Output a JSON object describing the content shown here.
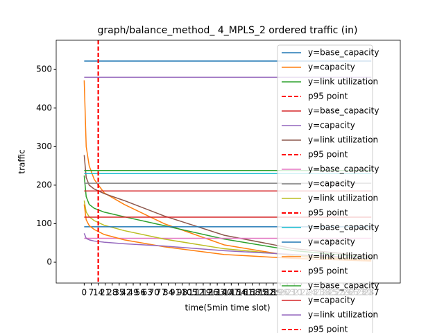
{
  "chart_data": {
    "type": "line",
    "title": "graph/balance_method_ 4_MPLS_2 ordered traffic (in)",
    "x_label": "time(5min time slot)",
    "y_label": "traffic",
    "x": [
      0,
      2,
      5,
      10,
      20,
      40,
      80,
      140,
      210,
      287
    ],
    "xlim": [
      -28,
      316
    ],
    "ylim": [
      -54,
      576
    ],
    "xticks": [
      0,
      7,
      14,
      21,
      28,
      35,
      42,
      49,
      56,
      63,
      70,
      77,
      84,
      91,
      98,
      105,
      112,
      119,
      126,
      133,
      140,
      147,
      154,
      161,
      168,
      175,
      182,
      189,
      196,
      203,
      210,
      217,
      224,
      231,
      238,
      245,
      252,
      259,
      266,
      273,
      280,
      287
    ],
    "yticks": [
      0,
      100,
      200,
      300,
      400,
      500
    ],
    "legend": "upper right",
    "series": [
      {
        "name": "y=base_capacity",
        "color": "#1f77b4",
        "values": [
          522,
          522,
          522,
          522,
          522,
          522,
          522,
          522,
          522,
          522
        ]
      },
      {
        "name": "y=capacity",
        "color": "#ff7f0e",
        "values": [
          472,
          300,
          250,
          215,
          180,
          150,
          100,
          45,
          15,
          5
        ]
      },
      {
        "name": "y=link utilization",
        "color": "#2ca02c",
        "values": [
          225,
          170,
          150,
          140,
          130,
          118,
          95,
          60,
          30,
          12
        ]
      },
      {
        "name": "p95 point",
        "color": "#ff0000",
        "dashed": true,
        "position": 14
      },
      {
        "name": "y=base_capacity",
        "color": "#d62728",
        "values": [
          185,
          185,
          185,
          185,
          185,
          185,
          185,
          185,
          185,
          185
        ]
      },
      {
        "name": "y=capacity",
        "color": "#9467bd",
        "values": [
          480,
          480,
          480,
          480,
          480,
          480,
          480,
          480,
          480,
          480
        ]
      },
      {
        "name": "y=link utilization",
        "color": "#8c564b",
        "values": [
          278,
          220,
          200,
          190,
          178,
          160,
          120,
          70,
          35,
          15
        ]
      },
      {
        "name": "p95 point",
        "color": "#ff0000",
        "dashed": true,
        "position": 14
      },
      {
        "name": "y=base_capacity",
        "color": "#e377c2",
        "values": [
          62,
          62,
          62,
          62,
          62,
          62,
          62,
          62,
          62,
          62
        ]
      },
      {
        "name": "y=capacity",
        "color": "#7f7f7f",
        "values": [
          205,
          205,
          205,
          205,
          205,
          205,
          205,
          205,
          205,
          205
        ]
      },
      {
        "name": "y=link utilization",
        "color": "#bcbd22",
        "values": [
          160,
          130,
          118,
          108,
          96,
          82,
          60,
          35,
          18,
          8
        ]
      },
      {
        "name": "p95 point",
        "color": "#ff0000",
        "dashed": true,
        "position": 14
      },
      {
        "name": "y=base_capacity",
        "color": "#17becf",
        "values": [
          230,
          230,
          230,
          230,
          230,
          230,
          230,
          230,
          230,
          230
        ]
      },
      {
        "name": "y=capacity",
        "color": "#1f77b4",
        "values": [
          92,
          92,
          92,
          92,
          92,
          92,
          92,
          92,
          92,
          92
        ]
      },
      {
        "name": "y=link utilization",
        "color": "#ff7f0e",
        "values": [
          150,
          110,
          95,
          85,
          72,
          58,
          40,
          20,
          10,
          3
        ]
      },
      {
        "name": "p95 point",
        "color": "#ff0000",
        "dashed": true,
        "position": 14
      },
      {
        "name": "y=base_capacity",
        "color": "#2ca02c",
        "values": [
          238,
          238,
          238,
          238,
          238,
          238,
          238,
          238,
          238,
          238
        ]
      },
      {
        "name": "y=capacity",
        "color": "#d62728",
        "values": [
          117,
          117,
          117,
          117,
          117,
          117,
          117,
          117,
          117,
          117
        ]
      },
      {
        "name": "y=link utilization",
        "color": "#9467bd",
        "values": [
          75,
          62,
          58,
          55,
          52,
          48,
          42,
          30,
          20,
          10
        ]
      },
      {
        "name": "p95 point",
        "color": "#ff0000",
        "dashed": true,
        "position": 14
      }
    ]
  }
}
